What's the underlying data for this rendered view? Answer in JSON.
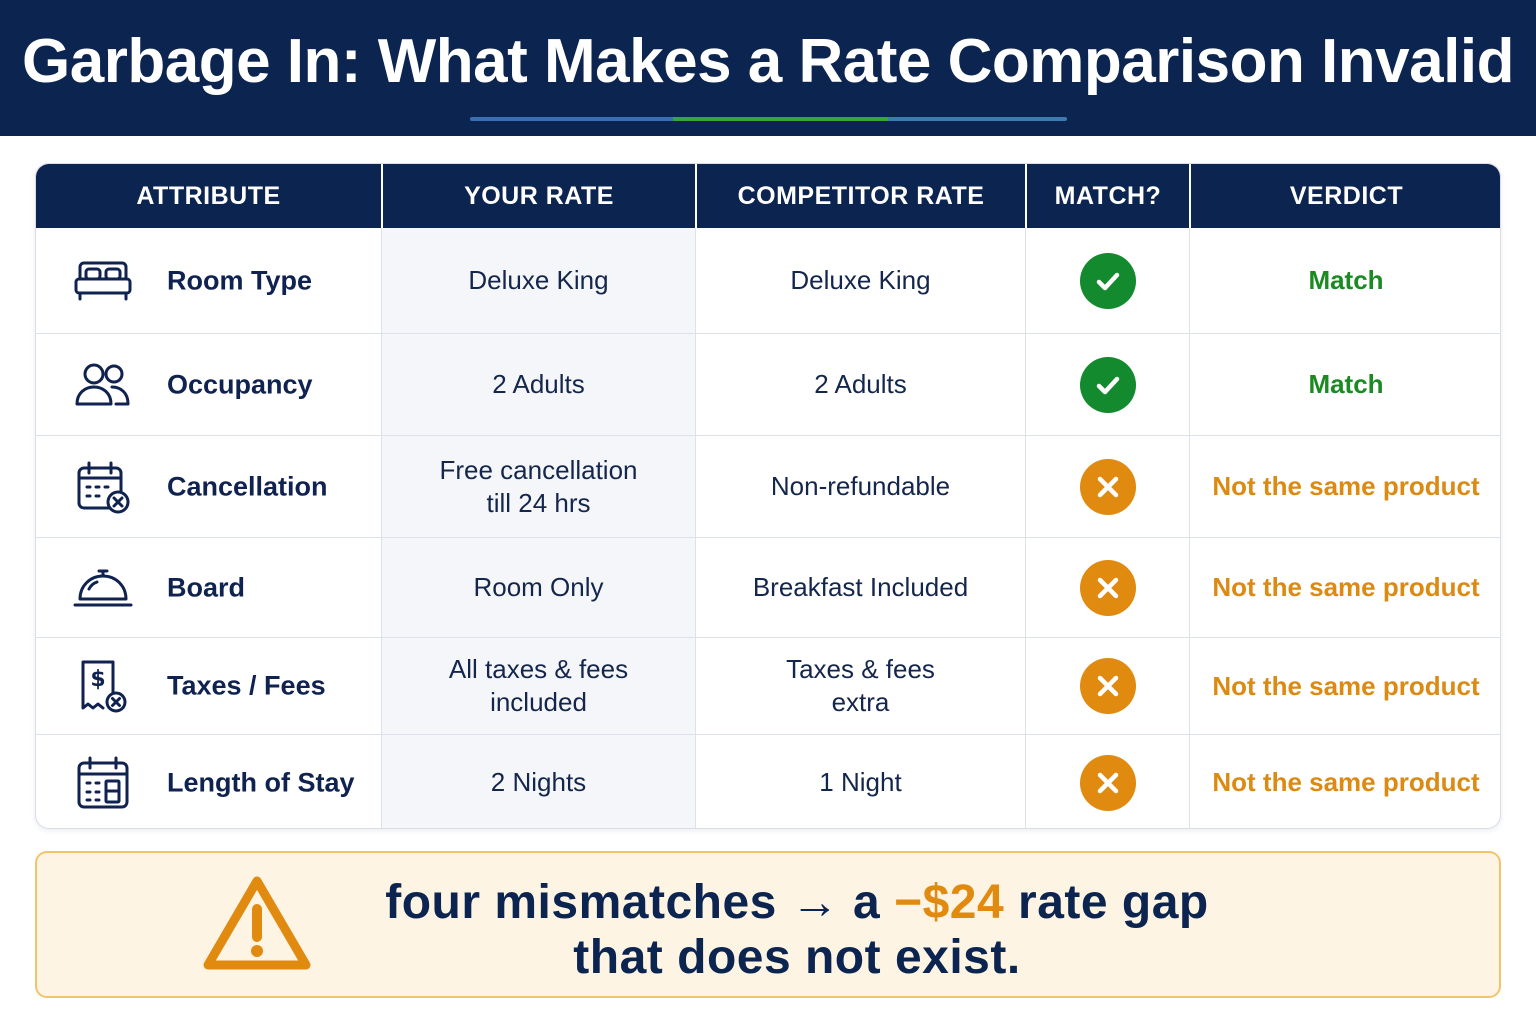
{
  "header": {
    "title": "Garbage In: What Makes a Rate Comparison Invalid"
  },
  "table": {
    "columns": [
      "ATTRIBUTE",
      "YOUR RATE",
      "COMPETITOR RATE",
      "MATCH?",
      "VERDICT"
    ],
    "rows": [
      {
        "attribute": "Room Type",
        "icon": "bed-icon",
        "your_rate": "Deluxe King",
        "competitor_rate": "Deluxe King",
        "match": "check-icon",
        "verdict": "Match"
      },
      {
        "attribute": "Occupancy",
        "icon": "users-icon",
        "your_rate": "2 Adults",
        "competitor_rate": "2 Adults",
        "match": "check-icon",
        "verdict": "Match"
      },
      {
        "attribute": "Cancellation",
        "icon": "calendar-cancel-icon",
        "your_rate": "Free cancellation\ntill 24 hrs",
        "competitor_rate": "Non-refundable",
        "match": "x-icon",
        "verdict": "Not the same product"
      },
      {
        "attribute": "Board",
        "icon": "cloche-icon",
        "your_rate": "Room Only",
        "competitor_rate": "Breakfast Included",
        "match": "x-icon",
        "verdict": "Not the same product"
      },
      {
        "attribute": "Taxes / Fees",
        "icon": "receipt-dollar-icon",
        "your_rate": "All taxes & fees\nincluded",
        "competitor_rate": "Taxes & fees\nextra",
        "match": "x-icon",
        "verdict": "Not the same product"
      },
      {
        "attribute": "Length of Stay",
        "icon": "calendar-grid-icon",
        "your_rate": "2 Nights",
        "competitor_rate": "1 Night",
        "match": "x-icon",
        "verdict": "Not the same product"
      }
    ]
  },
  "callout": {
    "icon": "warning-icon",
    "line1_pre": "four mismatches → a ",
    "line1_accent": "−$24",
    "line1_post": " rate gap",
    "line2": "that does not exist."
  },
  "colors": {
    "navy": "#0c2450",
    "match_green": "#1c8a23",
    "mismatch_orange": "#e08a10",
    "callout_bg": "#fdf4e3"
  }
}
